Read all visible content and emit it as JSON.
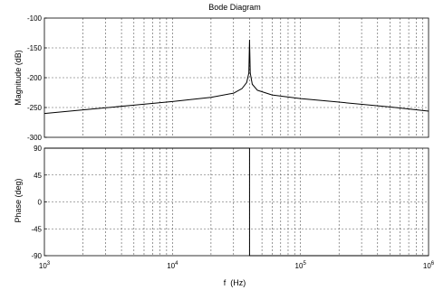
{
  "chart_data": [
    {
      "type": "line",
      "title": "Bode Diagram",
      "ylabel": "Magnitude (dB)",
      "xlabel": "",
      "x_scale": "log",
      "xlim": [
        1000,
        1000000
      ],
      "ylim": [
        -300,
        -100
      ],
      "yticks": [
        -100,
        -150,
        -200,
        -250,
        -300
      ],
      "ytick_labels": [
        "-100",
        "-150",
        "-200",
        "-250",
        "-300"
      ],
      "grid": true,
      "grid_style": "dashed",
      "series": [
        {
          "color": "#000000",
          "x": [
            1000,
            2000,
            5000,
            10000,
            20000,
            30000,
            35000,
            38000,
            39500,
            40000,
            40500,
            42000,
            46000,
            60000,
            100000,
            200000,
            500000,
            1000000
          ],
          "y": [
            -260,
            -254,
            -246,
            -240,
            -233,
            -226,
            -218,
            -208,
            -192,
            -137,
            -192,
            -211,
            -221,
            -229,
            -235,
            -241,
            -249,
            -256
          ]
        }
      ]
    },
    {
      "type": "line",
      "title": "",
      "ylabel": "Phase (deg)",
      "xlabel": "f  (Hz)",
      "x_scale": "log",
      "xlim": [
        1000,
        1000000
      ],
      "ylim": [
        -90,
        90
      ],
      "yticks": [
        90,
        45,
        0,
        -45,
        -90
      ],
      "ytick_labels": [
        "90",
        "45",
        "0",
        "-45",
        "-90"
      ],
      "xtick_labels": [
        {
          "value": 1000,
          "base": "10",
          "exp": "3"
        },
        {
          "value": 10000,
          "base": "10",
          "exp": "4"
        },
        {
          "value": 100000,
          "base": "10",
          "exp": "5"
        },
        {
          "value": 1000000,
          "base": "10",
          "exp": "6"
        }
      ],
      "grid": true,
      "grid_style": "dashed",
      "series": [
        {
          "color": "#000000",
          "x": [
            1000,
            40000,
            40000,
            1000000
          ],
          "y": [
            90,
            90,
            -90,
            -90
          ]
        }
      ]
    }
  ]
}
